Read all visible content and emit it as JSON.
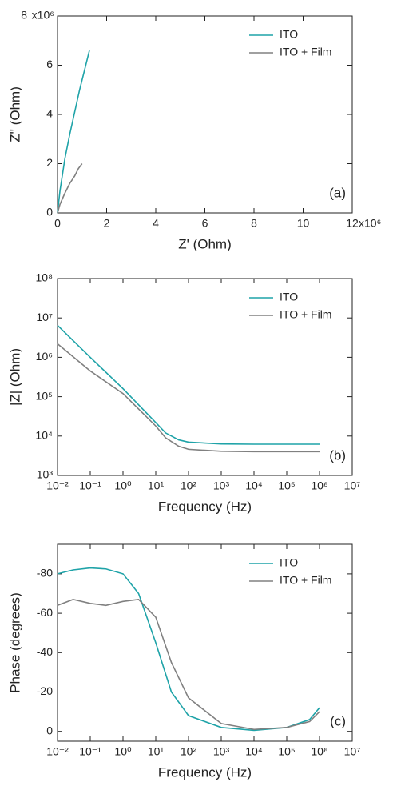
{
  "chart_data": [
    {
      "type": "line",
      "panel_label": "(a)",
      "xlabel": "Z' (Ohm)",
      "ylabel": "Z'' (Ohm)",
      "x_multiplier": "x10⁶",
      "y_multiplier": "x10⁶",
      "xlim": [
        0,
        12
      ],
      "ylim": [
        0,
        8
      ],
      "xticks": [
        0,
        2,
        4,
        6,
        8,
        10,
        12
      ],
      "yticks": [
        0,
        2,
        4,
        6,
        8
      ],
      "legend": "upper right",
      "series": [
        {
          "name": "ITO",
          "color": "#1fa3a8",
          "x": [
            0,
            0.1,
            0.3,
            0.5,
            0.7,
            0.9,
            1.1,
            1.3
          ],
          "values": [
            0,
            0.9,
            2.2,
            3.2,
            4.1,
            5.0,
            5.8,
            6.6
          ]
        },
        {
          "name": "ITO + Film",
          "color": "#808080",
          "x": [
            0,
            0.1,
            0.3,
            0.5,
            0.7,
            0.85,
            1.0
          ],
          "values": [
            0,
            0.35,
            0.8,
            1.2,
            1.5,
            1.8,
            2.0
          ]
        }
      ]
    },
    {
      "type": "line",
      "panel_label": "(b)",
      "xlabel": "Frequency (Hz)",
      "ylabel": "|Z| (Ohm)",
      "xscale": "log",
      "yscale": "log",
      "xlim": [
        0.01,
        10000000
      ],
      "ylim": [
        1000,
        100000000
      ],
      "xticks": [
        {
          "value": 0.01,
          "label": "10⁻²"
        },
        {
          "value": 0.1,
          "label": "10⁻¹"
        },
        {
          "value": 1,
          "label": "10⁰"
        },
        {
          "value": 10,
          "label": "10¹"
        },
        {
          "value": 100,
          "label": "10²"
        },
        {
          "value": 1000,
          "label": "10³"
        },
        {
          "value": 10000,
          "label": "10⁴"
        },
        {
          "value": 100000,
          "label": "10⁵"
        },
        {
          "value": 1000000,
          "label": "10⁶"
        },
        {
          "value": 10000000,
          "label": "10⁷"
        }
      ],
      "yticks": [
        {
          "value": 1000,
          "label": "10³"
        },
        {
          "value": 10000,
          "label": "10⁴"
        },
        {
          "value": 100000,
          "label": "10⁵"
        },
        {
          "value": 1000000,
          "label": "10⁶"
        },
        {
          "value": 10000000,
          "label": "10⁷"
        },
        {
          "value": 100000000,
          "label": "10⁸"
        }
      ],
      "legend": "upper right",
      "x": [
        0.01,
        0.1,
        1,
        10,
        20,
        50,
        100,
        1000,
        10000,
        100000,
        1000000
      ],
      "series": [
        {
          "name": "ITO",
          "color": "#1fa3a8",
          "values": [
            6500000,
            1000000,
            160000,
            22000,
            12000,
            8000,
            7000,
            6300,
            6200,
            6200,
            6200
          ]
        },
        {
          "name": "ITO + Film",
          "color": "#808080",
          "values": [
            2200000,
            450000,
            120000,
            18000,
            9000,
            5500,
            4600,
            4100,
            4000,
            4000,
            4000
          ]
        }
      ]
    },
    {
      "type": "line",
      "panel_label": "(c)",
      "xlabel": "Frequency (Hz)",
      "ylabel": "Phase (degrees)",
      "xscale": "log",
      "xlim": [
        0.01,
        10000000
      ],
      "ylim": [
        5,
        -95
      ],
      "xticks": [
        {
          "value": 0.01,
          "label": "10⁻²"
        },
        {
          "value": 0.1,
          "label": "10⁻¹"
        },
        {
          "value": 1,
          "label": "10⁰"
        },
        {
          "value": 10,
          "label": "10¹"
        },
        {
          "value": 100,
          "label": "10²"
        },
        {
          "value": 1000,
          "label": "10³"
        },
        {
          "value": 10000,
          "label": "10⁴"
        },
        {
          "value": 100000,
          "label": "10⁵"
        },
        {
          "value": 1000000,
          "label": "10⁶"
        },
        {
          "value": 10000000,
          "label": "10⁷"
        }
      ],
      "yticks": [
        0,
        -20,
        -40,
        -60,
        -80
      ],
      "legend": "upper right",
      "x": [
        0.01,
        0.03,
        0.1,
        0.3,
        1,
        3,
        10,
        30,
        100,
        1000,
        10000,
        100000,
        500000,
        1000000
      ],
      "series": [
        {
          "name": "ITO",
          "color": "#1fa3a8",
          "values": [
            -80,
            -82,
            -83,
            -82.5,
            -80,
            -70,
            -45,
            -20,
            -8,
            -2,
            -0.5,
            -2,
            -6,
            -12
          ]
        },
        {
          "name": "ITO + Film",
          "color": "#808080",
          "values": [
            -64,
            -67,
            -65,
            -64,
            -66,
            -67,
            -58,
            -35,
            -17,
            -4,
            -1,
            -2,
            -5,
            -10
          ]
        }
      ]
    }
  ]
}
